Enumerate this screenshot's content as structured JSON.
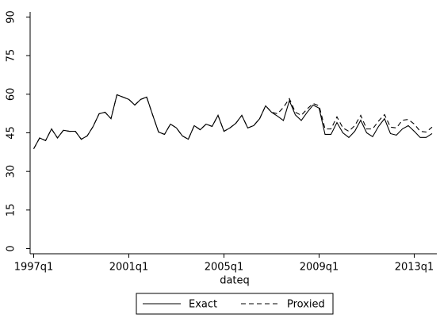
{
  "chart_data": {
    "type": "line",
    "x_label": "dateq",
    "x": [
      1997,
      1997.25,
      1997.5,
      1997.75,
      1998,
      1998.25,
      1998.5,
      1998.75,
      1999,
      1999.25,
      1999.5,
      1999.75,
      2000,
      2000.25,
      2000.5,
      2000.75,
      2001,
      2001.25,
      2001.5,
      2001.75,
      2002,
      2002.25,
      2002.5,
      2002.75,
      2003,
      2003.25,
      2003.5,
      2003.75,
      2004,
      2004.25,
      2004.5,
      2004.75,
      2005,
      2005.25,
      2005.5,
      2005.75,
      2006,
      2006.25,
      2006.5,
      2006.75,
      2007,
      2007.25,
      2007.5,
      2007.75,
      2008,
      2008.25,
      2008.5,
      2008.75,
      2009,
      2009.25,
      2009.5,
      2009.75,
      2010,
      2010.25,
      2010.5,
      2010.75,
      2011,
      2011.25,
      2011.5,
      2011.75,
      2012,
      2012.25,
      2012.5,
      2012.75,
      2013,
      2013.25,
      2013.5,
      2013.75
    ],
    "series": [
      {
        "name": "Exact",
        "color": "#000000",
        "style": "solid",
        "values": [
          38.8,
          43,
          42,
          46.5,
          43,
          46,
          45.6,
          45.6,
          42.5,
          43.8,
          47.5,
          52.4,
          53,
          50.5,
          59.8,
          58.9,
          58,
          55.8,
          58,
          58.9,
          52,
          45.3,
          44.4,
          48.4,
          46.9,
          43.8,
          42.5,
          47.8,
          46.2,
          48.4,
          47.5,
          51.8,
          45.6,
          46.9,
          48.7,
          51.8,
          46.9,
          47.8,
          50.5,
          55.5,
          53,
          51.5,
          49.8,
          57.5,
          52,
          49.8,
          53,
          55.8,
          54.6,
          44.4,
          44.4,
          49,
          45,
          43.2,
          45.6,
          49.9,
          45,
          43.5,
          47.5,
          50.5,
          44.7,
          44.1,
          46.5,
          47.8,
          45.6,
          43.2,
          43.2,
          44.7
        ]
      },
      {
        "name": "Proxied",
        "color": "#000000",
        "style": "dashed",
        "values": [
          38.8,
          43,
          42,
          46.5,
          43,
          46,
          45.6,
          45.6,
          42.5,
          43.8,
          47.5,
          52.4,
          53,
          50.5,
          59.8,
          58.9,
          58,
          55.8,
          58,
          58.9,
          52,
          45.3,
          44.4,
          48.4,
          46.9,
          43.8,
          42.5,
          47.8,
          46.2,
          48.4,
          47.5,
          51.8,
          45.6,
          46.9,
          48.7,
          51.8,
          46.9,
          47.8,
          50.5,
          55.5,
          53,
          52.4,
          54.9,
          58.3,
          53,
          51.8,
          54.3,
          56.4,
          55.5,
          46.5,
          46.5,
          51.2,
          46.9,
          45.6,
          47.8,
          51.8,
          46.5,
          46.5,
          49.6,
          52.1,
          47.2,
          46.9,
          49.9,
          50.2,
          48.4,
          45.6,
          45.3,
          47.2
        ]
      }
    ],
    "xlim": [
      1996.85,
      2013.95
    ],
    "xticks": [
      {
        "value": 1997,
        "label": "1997q1"
      },
      {
        "value": 2001,
        "label": "2001q1"
      },
      {
        "value": 2005,
        "label": "2005q1"
      },
      {
        "value": 2009,
        "label": "2009q1"
      },
      {
        "value": 2013,
        "label": "2013q1"
      }
    ],
    "ylim": [
      -2,
      92
    ],
    "yticks": [
      0,
      15,
      30,
      45,
      60,
      75,
      90
    ],
    "grid": false,
    "legend": "bottom"
  }
}
